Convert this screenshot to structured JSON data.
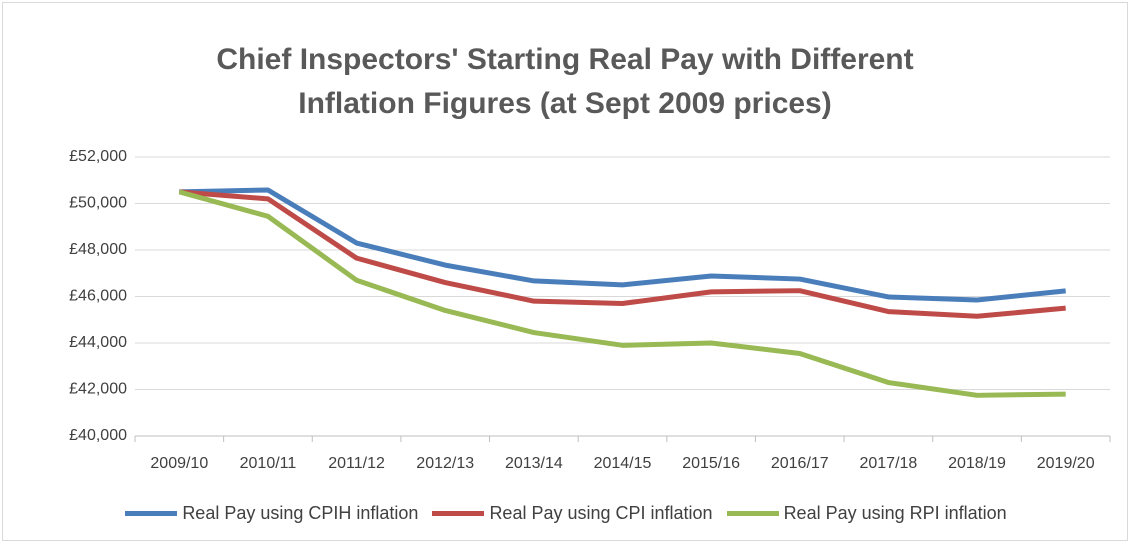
{
  "chart_data": {
    "type": "line",
    "title": "Chief Inspectors' Starting Real Pay with Different Inflation Figures (at Sept 2009 prices)",
    "categories": [
      "2009/10",
      "2010/11",
      "2011/12",
      "2012/13",
      "2013/14",
      "2014/15",
      "2015/16",
      "2016/17",
      "2017/18",
      "2018/19",
      "2019/20"
    ],
    "series": [
      {
        "name": "Real Pay using CPIH inflation",
        "color": "#4a7ebb",
        "values": [
          50500,
          50580,
          48300,
          47350,
          46670,
          46500,
          46880,
          46750,
          45980,
          45850,
          46240
        ]
      },
      {
        "name": "Real Pay using CPI inflation",
        "color": "#be4b48",
        "values": [
          50500,
          50200,
          47650,
          46600,
          45800,
          45700,
          46200,
          46250,
          45350,
          45150,
          45500
        ]
      },
      {
        "name": "Real Pay using RPI inflation",
        "color": "#98b954",
        "values": [
          50500,
          49450,
          46700,
          45400,
          44450,
          43900,
          44000,
          43550,
          42300,
          41750,
          41800
        ]
      }
    ],
    "ylim": [
      40000,
      52000
    ],
    "yticks": [
      {
        "value": 40000,
        "label": "£40,000"
      },
      {
        "value": 42000,
        "label": "£42,000"
      },
      {
        "value": 44000,
        "label": "£44,000"
      },
      {
        "value": 46000,
        "label": "£46,000"
      },
      {
        "value": 48000,
        "label": "£48,000"
      },
      {
        "value": 50000,
        "label": "£50,000"
      },
      {
        "value": 52000,
        "label": "£52,000"
      }
    ],
    "grid": true,
    "legend": "bottom"
  }
}
